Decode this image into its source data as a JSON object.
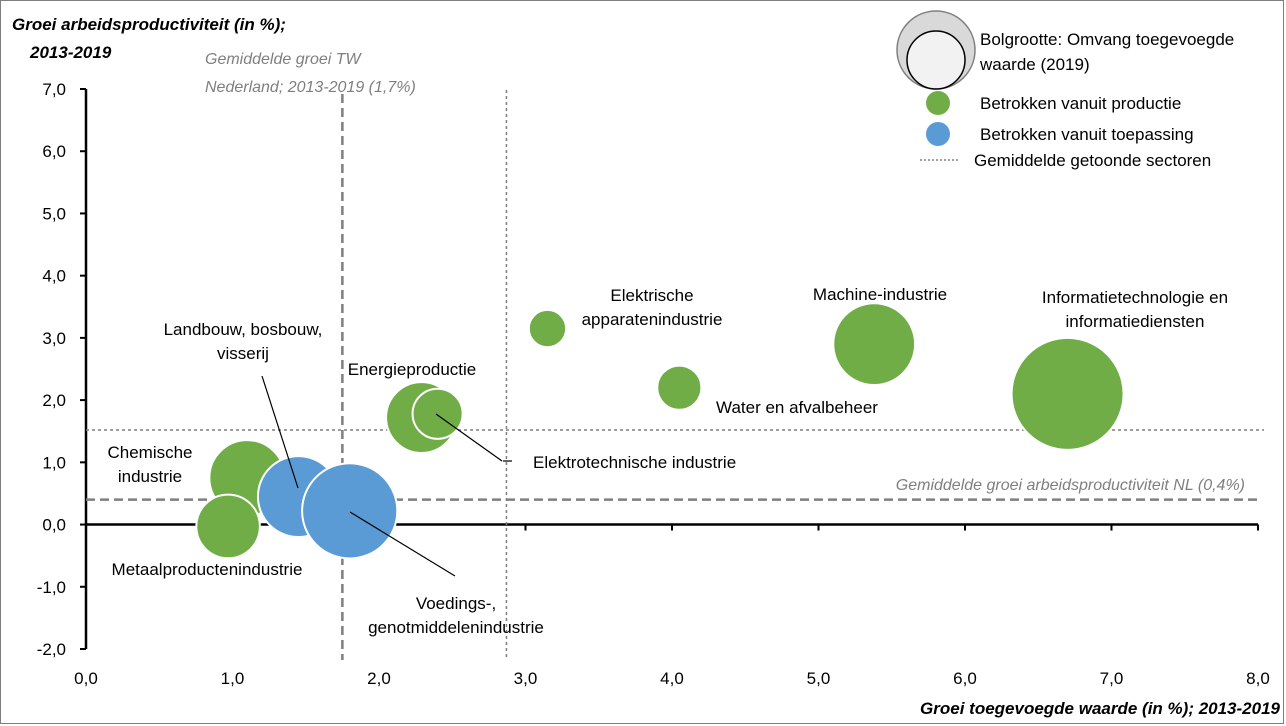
{
  "chart_data": {
    "type": "bubble",
    "y_title_line1": "Groei arbeidsproductiviteit (in %);",
    "y_title_line2": "2013-2019",
    "x_title": "Groei toegevoegde waarde (in %); 2013-2019",
    "xlim": [
      0,
      8
    ],
    "ylim": [
      -2,
      7
    ],
    "x_ticks": [
      "0,0",
      "1,0",
      "2,0",
      "3,0",
      "4,0",
      "5,0",
      "6,0",
      "7,0",
      "8,0"
    ],
    "y_ticks": [
      "-2,0",
      "-1,0",
      "0,0",
      "1,0",
      "2,0",
      "3,0",
      "4,0",
      "5,0",
      "6,0",
      "7,0"
    ],
    "reference_lines": {
      "avg_growth_tw_nl": {
        "x": 1.75,
        "label_line1": "Gemiddelde groei TW",
        "label_line2": "Nederland; 2013-2019 (1,7%)"
      },
      "avg_productivity_nl": {
        "y": 0.4,
        "label": "Gemiddelde groei arbeidsproductiviteit  NL (0,4%)"
      },
      "avg_sectors_x": 2.87,
      "avg_sectors_y": 1.52
    },
    "legend": {
      "size_line1": "Bolgrootte: Omvang toegevoegde",
      "size_line2": "waarde (2019)",
      "green": "Betrokken vanuit productie",
      "blue": "Betrokken vanuit toepassing",
      "dotted": "Gemiddelde getoonde sectoren"
    },
    "colors": {
      "green": "#70ad47",
      "blue": "#5b9bd5",
      "grey_line": "#7f7f7f"
    },
    "series": [
      {
        "x": 1.1,
        "y": 0.75,
        "size": 4.1,
        "group": "green",
        "label": [
          "Chemische",
          "industrie"
        ]
      },
      {
        "x": 1.45,
        "y": 0.45,
        "size": 4.7,
        "group": "blue",
        "label": [
          "Landbouw, bosbouw,",
          "visserij"
        ]
      },
      {
        "x": 1.8,
        "y": 0.22,
        "size": 6.5,
        "group": "blue",
        "label": [
          "Voedings-,",
          "genotmiddelenindustrie"
        ]
      },
      {
        "x": 0.97,
        "y": -0.03,
        "size": 2.9,
        "group": "green",
        "label": [
          "Metaalproductenindustrie"
        ]
      },
      {
        "x": 2.29,
        "y": 1.72,
        "size": 3.6,
        "group": "green",
        "label": [
          "Energieproductie"
        ]
      },
      {
        "x": 2.4,
        "y": 1.78,
        "size": 1.8,
        "group": "green",
        "label": [
          "Elektrotechnische industrie"
        ]
      },
      {
        "x": 3.15,
        "y": 3.15,
        "size": 1.0,
        "group": "green",
        "label": [
          "Elektrische",
          "apparatenindustrie"
        ]
      },
      {
        "x": 4.05,
        "y": 2.2,
        "size": 1.4,
        "group": "green",
        "label": [
          "Water en afvalbeheer"
        ]
      },
      {
        "x": 5.38,
        "y": 2.9,
        "size": 4.8,
        "group": "green",
        "label": [
          "Machine-industrie"
        ]
      },
      {
        "x": 6.7,
        "y": 2.1,
        "size": 9.0,
        "group": "green",
        "label": [
          "Informatietechnologie en",
          "informatiediensten"
        ]
      }
    ]
  }
}
